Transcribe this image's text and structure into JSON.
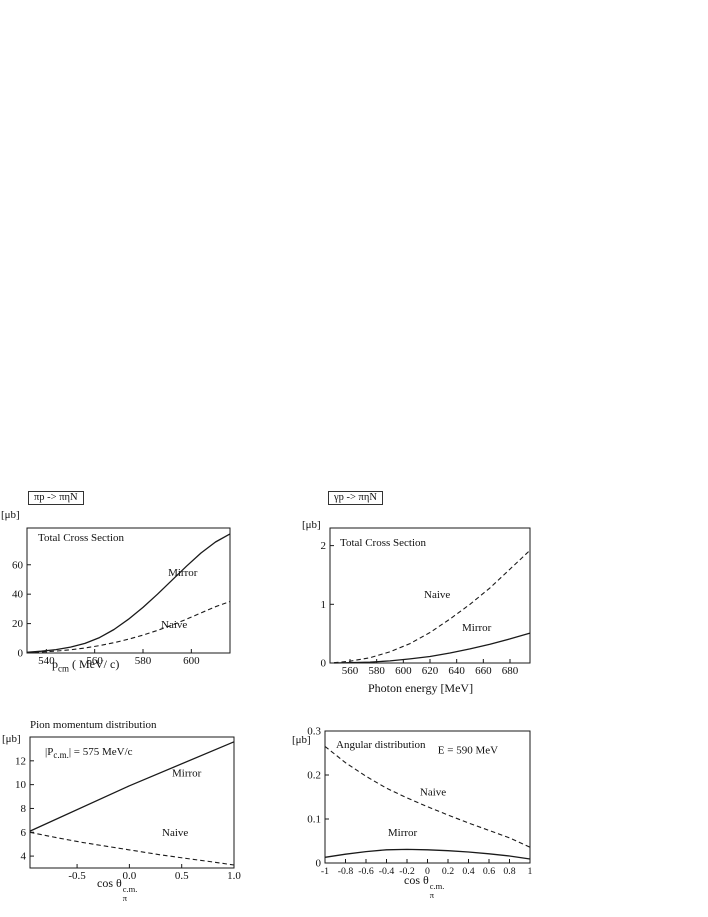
{
  "figure": {
    "background": "#ffffff",
    "line_color": "#1a1a1a"
  },
  "chart_data": [
    {
      "type": "line",
      "header": "πp -> πηN",
      "unit": "[μb]",
      "title": "Total Cross Section",
      "xlabel": {
        "main": "p",
        "sub": "cm",
        "rest": " ( MeV/ c)"
      },
      "xlim": [
        532,
        616
      ],
      "ylim": [
        0,
        85
      ],
      "xticks": [
        540,
        560,
        580,
        600
      ],
      "xtick_labels": [
        "540",
        "560",
        "580",
        "600"
      ],
      "yticks": [
        0,
        20,
        40,
        60
      ],
      "ytick_labels": [
        "0",
        "20",
        "40",
        "60"
      ],
      "grid": false,
      "legend": "in-plot-text",
      "series": [
        {
          "name": "Mirror",
          "line": "solid",
          "x": [
            532,
            538,
            544,
            550,
            556,
            562,
            568,
            574,
            580,
            586,
            592,
            598,
            604,
            610,
            616
          ],
          "y": [
            0.5,
            1.2,
            2.3,
            4,
            6.5,
            10.5,
            16,
            23,
            31,
            40,
            49.5,
            59,
            68,
            75.5,
            81
          ]
        },
        {
          "name": "Naive",
          "line": "dashed",
          "x": [
            532,
            538,
            544,
            550,
            556,
            562,
            568,
            574,
            580,
            586,
            592,
            598,
            604,
            610,
            616
          ],
          "y": [
            0.3,
            0.7,
            1.3,
            2.2,
            3.4,
            5,
            7,
            9.4,
            12.2,
            15.4,
            19,
            23,
            27.3,
            31.5,
            35
          ]
        }
      ],
      "annotations": [
        {
          "text": "Mirror",
          "fx": 0.695,
          "fy": 0.384
        },
        {
          "text": "Naive",
          "fx": 0.66,
          "fy": 0.8
        }
      ]
    },
    {
      "type": "line",
      "header": "γp -> πηN",
      "unit": "[μb]",
      "title": "Total Cross Section",
      "xlabel": {
        "main": "Photon energy [MeV]"
      },
      "xlim": [
        545,
        695
      ],
      "ylim": [
        0,
        2.3
      ],
      "xticks": [
        560,
        580,
        600,
        620,
        640,
        660,
        680
      ],
      "xtick_labels": [
        "560",
        "580",
        "600",
        "620",
        "640",
        "660",
        "680"
      ],
      "yticks": [
        0,
        1,
        2
      ],
      "ytick_labels": [
        "0",
        "1",
        "2"
      ],
      "grid": false,
      "legend": "in-plot-text",
      "series": [
        {
          "name": "Naive",
          "line": "dashed",
          "x": [
            548,
            560,
            575,
            590,
            605,
            620,
            635,
            650,
            665,
            680,
            695
          ],
          "y": [
            0.005,
            0.03,
            0.09,
            0.19,
            0.33,
            0.52,
            0.75,
            1.0,
            1.28,
            1.6,
            1.92
          ]
        },
        {
          "name": "Mirror",
          "line": "solid",
          "x": [
            548,
            560,
            575,
            590,
            605,
            620,
            635,
            650,
            665,
            680,
            695
          ],
          "y": [
            0.0,
            0.005,
            0.015,
            0.035,
            0.07,
            0.11,
            0.17,
            0.24,
            0.32,
            0.41,
            0.51
          ]
        }
      ],
      "annotations": [
        {
          "text": "Naive",
          "fx": 0.47,
          "fy": 0.52
        },
        {
          "text": "Mirror",
          "fx": 0.66,
          "fy": 0.763
        }
      ]
    },
    {
      "type": "line",
      "title": "Pion momentum distribution",
      "unit": "[μb]",
      "condition": {
        "pre": "|P",
        "sub": "c.m.",
        "post": "| = 575 MeV/c"
      },
      "xlabel": {
        "main": "cos θ",
        "sub": "π",
        "sup": "c.m."
      },
      "xlim": [
        -0.95,
        1.0
      ],
      "ylim": [
        3,
        14
      ],
      "xticks": [
        -0.5,
        0,
        0.5,
        1
      ],
      "xtick_labels": [
        "-0.5",
        "0.0",
        "0.5",
        "1.0"
      ],
      "yticks": [
        4,
        6,
        8,
        10,
        12
      ],
      "ytick_labels": [
        "4",
        "6",
        "8",
        "10",
        "12"
      ],
      "grid": false,
      "legend": "in-plot-text",
      "series": [
        {
          "name": "Mirror",
          "line": "solid",
          "x": [
            -0.95,
            0,
            1
          ],
          "y": [
            6.1,
            9.9,
            13.6
          ]
        },
        {
          "name": "Naive",
          "line": "dashed",
          "x": [
            -0.95,
            -0.7,
            -0.45,
            -0.2,
            0.05,
            0.3,
            0.55,
            0.8,
            1
          ],
          "y": [
            6.0,
            5.55,
            5.15,
            4.8,
            4.45,
            4.1,
            3.8,
            3.5,
            3.25
          ]
        }
      ],
      "annotations": [
        {
          "text": "Mirror",
          "fx": 0.696,
          "fy": 0.3
        },
        {
          "text": "Naive",
          "fx": 0.647,
          "fy": 0.756
        }
      ]
    },
    {
      "type": "line",
      "title": "Angular distribution",
      "unit": "[μb]",
      "energy_label": "E = 590 MeV",
      "xlabel": {
        "main": "cos θ",
        "sub": "π",
        "sup": "c.m."
      },
      "xlim": [
        -1,
        1
      ],
      "ylim": [
        0,
        0.3
      ],
      "xticks": [
        -1,
        -0.8,
        -0.6,
        -0.4,
        -0.2,
        0,
        0.2,
        0.4,
        0.6,
        0.8,
        1
      ],
      "xtick_labels": [
        "-1",
        "-0.8",
        "-0.6",
        "-0.4",
        "-0.2",
        "0",
        "0.2",
        "0.4",
        "0.6",
        "0.8",
        "1"
      ],
      "yticks": [
        0,
        0.1,
        0.2,
        0.3
      ],
      "ytick_labels": [
        "0",
        "0.1",
        "0.2",
        "0.3"
      ],
      "grid": false,
      "legend": "in-plot-text",
      "series": [
        {
          "name": "Naive",
          "line": "dashed",
          "x": [
            -1,
            -0.8,
            -0.6,
            -0.4,
            -0.2,
            0,
            0.2,
            0.4,
            0.6,
            0.8,
            1
          ],
          "y": [
            0.265,
            0.228,
            0.197,
            0.17,
            0.148,
            0.128,
            0.109,
            0.091,
            0.074,
            0.057,
            0.036
          ]
        },
        {
          "name": "Mirror",
          "line": "solid",
          "x": [
            -1,
            -0.8,
            -0.6,
            -0.4,
            -0.2,
            0,
            0.2,
            0.4,
            0.6,
            0.8,
            1
          ],
          "y": [
            0.013,
            0.02,
            0.026,
            0.03,
            0.031,
            0.03,
            0.028,
            0.025,
            0.021,
            0.016,
            0.009
          ]
        }
      ],
      "annotations": [
        {
          "text": "Naive",
          "fx": 0.463,
          "fy": 0.49
        },
        {
          "text": "Mirror",
          "fx": 0.307,
          "fy": 0.795
        },
        {
          "text": "E = 590 MeV",
          "fx": 0.55,
          "fy": 0.17
        }
      ]
    }
  ]
}
